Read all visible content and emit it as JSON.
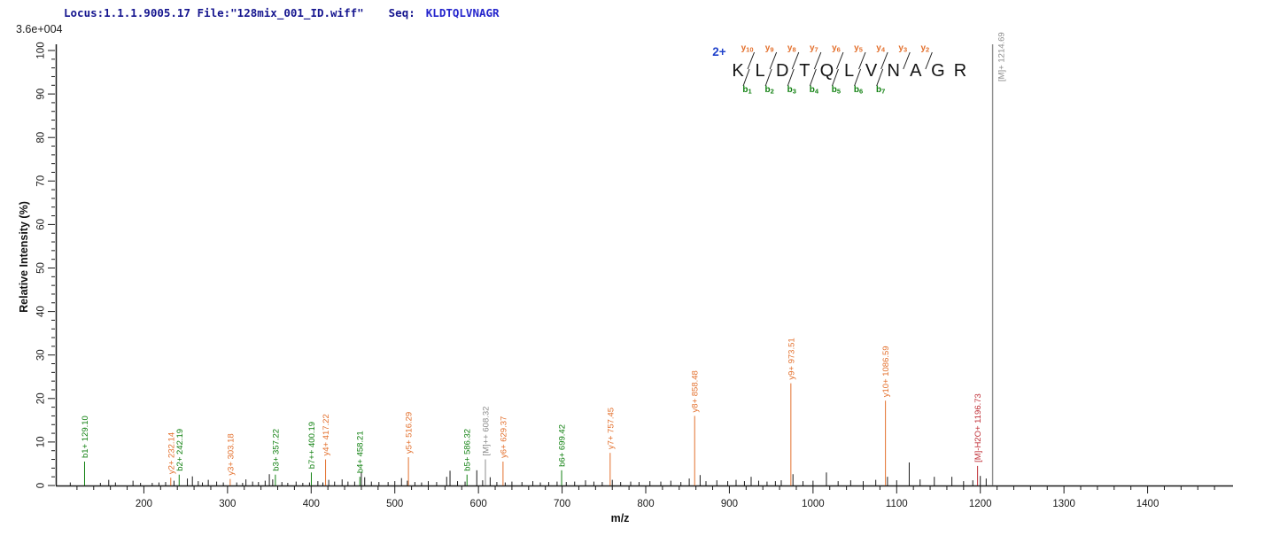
{
  "header": {
    "locus_file": "Locus:1.1.1.9005.17 File:\"128mix_001_ID.wiff\"",
    "seq_label": "Seq:",
    "seq_value": "KLDTQLVNAGR"
  },
  "colors": {
    "b_ion": "#108010",
    "y_ion": "#E3702D",
    "precursor": "#8C8C8C",
    "precursor_loss": "#C03038",
    "noise": "#1A1A1A",
    "axis": "#1A1A1A",
    "charge_blue": "#2244CC"
  },
  "annotation": {
    "charge": "2+",
    "sequence": "KLDTQLVNAGR",
    "y_ion_labels": [
      "y10",
      "y9",
      "y8",
      "y7",
      "y6",
      "y5",
      "y4",
      "y3",
      "y2"
    ],
    "b_ion_labels": [
      "b1",
      "b2",
      "b3",
      "b4",
      "b5",
      "b6",
      "b7"
    ],
    "precursor_line_label": "[M]+ 1214.69"
  },
  "chart_data": {
    "type": "bar",
    "title": "MS/MS fragment ion spectrum of peptide KLDTQLVNAGR (2+)",
    "xlabel": "m/z",
    "ylabel": "Relative  Intensity (%)",
    "intensity_scale_label": "3.6e+004",
    "xlim": [
      100,
      1500
    ],
    "ylim": [
      0,
      100
    ],
    "x_tick_labels": [
      200,
      300,
      400,
      500,
      600,
      700,
      800,
      900,
      1000,
      1100,
      1200,
      1300,
      1400
    ],
    "x_minor_step": 20,
    "y_tick_labels": [
      0,
      10,
      20,
      30,
      40,
      50,
      60,
      70,
      80,
      90,
      100
    ],
    "y_minor_step": 2,
    "grid": false,
    "labeled_peaks": [
      {
        "label": "b1+ 129.10",
        "mz": 129.1,
        "intensity_pct": 5.5,
        "series": "b"
      },
      {
        "label": "y2+ 232.14",
        "mz": 232.14,
        "intensity_pct": 1.8,
        "series": "y"
      },
      {
        "label": "b2+ 242.19",
        "mz": 242.19,
        "intensity_pct": 2.5,
        "series": "b"
      },
      {
        "label": "y3+ 303.18",
        "mz": 303.18,
        "intensity_pct": 1.5,
        "series": "y"
      },
      {
        "label": "b3+ 357.22",
        "mz": 357.22,
        "intensity_pct": 2.5,
        "series": "b"
      },
      {
        "label": "b7++ 400.19",
        "mz": 400.19,
        "intensity_pct": 3.0,
        "series": "b"
      },
      {
        "label": "y4+ 417.22",
        "mz": 417.22,
        "intensity_pct": 6.0,
        "series": "y"
      },
      {
        "label": "b4+ 458.21",
        "mz": 458.21,
        "intensity_pct": 2.0,
        "series": "b"
      },
      {
        "label": "y5+ 516.29",
        "mz": 516.29,
        "intensity_pct": 6.5,
        "series": "y"
      },
      {
        "label": "b5+ 586.32",
        "mz": 586.32,
        "intensity_pct": 2.5,
        "series": "b"
      },
      {
        "label": "[M]++ 608.32",
        "mz": 608.32,
        "intensity_pct": 6.0,
        "series": "precursor"
      },
      {
        "label": "y6+ 629.37",
        "mz": 629.37,
        "intensity_pct": 5.5,
        "series": "y"
      },
      {
        "label": "b6+ 699.42",
        "mz": 699.42,
        "intensity_pct": 3.5,
        "series": "b"
      },
      {
        "label": "y7+ 757.45",
        "mz": 757.45,
        "intensity_pct": 7.5,
        "series": "y"
      },
      {
        "label": "y8+ 858.48",
        "mz": 858.48,
        "intensity_pct": 16.0,
        "series": "y"
      },
      {
        "label": "y9+ 973.51",
        "mz": 973.51,
        "intensity_pct": 23.5,
        "series": "y"
      },
      {
        "label": "y10+ 1086.59",
        "mz": 1086.59,
        "intensity_pct": 19.5,
        "series": "y"
      },
      {
        "label": "[M]-H2O+ 1196.73",
        "mz": 1196.73,
        "intensity_pct": 4.5,
        "series": "precursor-loss"
      },
      {
        "label": "[M]+ 1214.69",
        "mz": 1214.69,
        "intensity_pct": 101,
        "series": "precursor",
        "off_scale": true
      }
    ],
    "noise_peaks": [
      [
        112,
        0.7
      ],
      [
        148,
        0.6
      ],
      [
        158,
        1.3
      ],
      [
        166,
        0.7
      ],
      [
        187,
        1.1
      ],
      [
        196,
        0.6
      ],
      [
        210,
        0.6
      ],
      [
        218,
        0.7
      ],
      [
        226,
        0.8
      ],
      [
        236,
        1.1
      ],
      [
        252,
        1.6
      ],
      [
        258,
        2.1
      ],
      [
        265,
        1.0
      ],
      [
        270,
        0.7
      ],
      [
        277,
        1.3
      ],
      [
        287,
        0.9
      ],
      [
        295,
        0.7
      ],
      [
        311,
        0.7
      ],
      [
        318,
        0.6
      ],
      [
        322,
        1.4
      ],
      [
        330,
        0.9
      ],
      [
        337,
        0.8
      ],
      [
        345,
        1.1
      ],
      [
        350,
        2.6
      ],
      [
        354,
        1.4
      ],
      [
        365,
        0.8
      ],
      [
        372,
        0.6
      ],
      [
        382,
        0.9
      ],
      [
        390,
        0.6
      ],
      [
        398,
        0.7
      ],
      [
        408,
        1.0
      ],
      [
        414,
        0.7
      ],
      [
        421,
        1.3
      ],
      [
        428,
        0.9
      ],
      [
        437,
        1.4
      ],
      [
        444,
        0.9
      ],
      [
        452,
        0.9
      ],
      [
        460,
        3.0
      ],
      [
        464,
        1.9
      ],
      [
        472,
        0.9
      ],
      [
        481,
        0.8
      ],
      [
        492,
        0.8
      ],
      [
        500,
        1.0
      ],
      [
        508,
        1.7
      ],
      [
        515,
        1.1
      ],
      [
        524,
        0.8
      ],
      [
        532,
        0.7
      ],
      [
        540,
        1.0
      ],
      [
        550,
        0.8
      ],
      [
        562,
        2.0
      ],
      [
        566,
        3.4
      ],
      [
        575,
        1.0
      ],
      [
        584,
        0.9
      ],
      [
        598,
        3.5
      ],
      [
        605,
        1.2
      ],
      [
        614,
        1.9
      ],
      [
        622,
        0.8
      ],
      [
        632,
        0.7
      ],
      [
        640,
        0.9
      ],
      [
        652,
        0.8
      ],
      [
        665,
        1.0
      ],
      [
        674,
        0.7
      ],
      [
        684,
        0.8
      ],
      [
        694,
        0.9
      ],
      [
        705,
        0.8
      ],
      [
        715,
        0.9
      ],
      [
        728,
        1.2
      ],
      [
        738,
        0.9
      ],
      [
        748,
        0.8
      ],
      [
        760,
        1.3
      ],
      [
        770,
        0.8
      ],
      [
        782,
        0.9
      ],
      [
        792,
        0.8
      ],
      [
        805,
        1.0
      ],
      [
        818,
        0.9
      ],
      [
        830,
        1.1
      ],
      [
        842,
        0.8
      ],
      [
        852,
        1.6
      ],
      [
        865,
        2.4
      ],
      [
        872,
        1.0
      ],
      [
        885,
        1.2
      ],
      [
        898,
        1.0
      ],
      [
        908,
        1.3
      ],
      [
        918,
        1.0
      ],
      [
        926,
        2.0
      ],
      [
        935,
        1.1
      ],
      [
        945,
        0.9
      ],
      [
        955,
        1.0
      ],
      [
        962,
        1.2
      ],
      [
        976,
        2.6
      ],
      [
        988,
        1.0
      ],
      [
        1000,
        1.1
      ],
      [
        1016,
        3.0
      ],
      [
        1030,
        1.0
      ],
      [
        1045,
        1.2
      ],
      [
        1060,
        1.0
      ],
      [
        1075,
        1.3
      ],
      [
        1089,
        2.0
      ],
      [
        1100,
        1.2
      ],
      [
        1115,
        5.3
      ],
      [
        1128,
        1.4
      ],
      [
        1145,
        2.0
      ],
      [
        1166,
        2.0
      ],
      [
        1180,
        1.0
      ],
      [
        1191,
        1.2
      ],
      [
        1200,
        2.2
      ],
      [
        1207,
        1.6
      ]
    ]
  }
}
